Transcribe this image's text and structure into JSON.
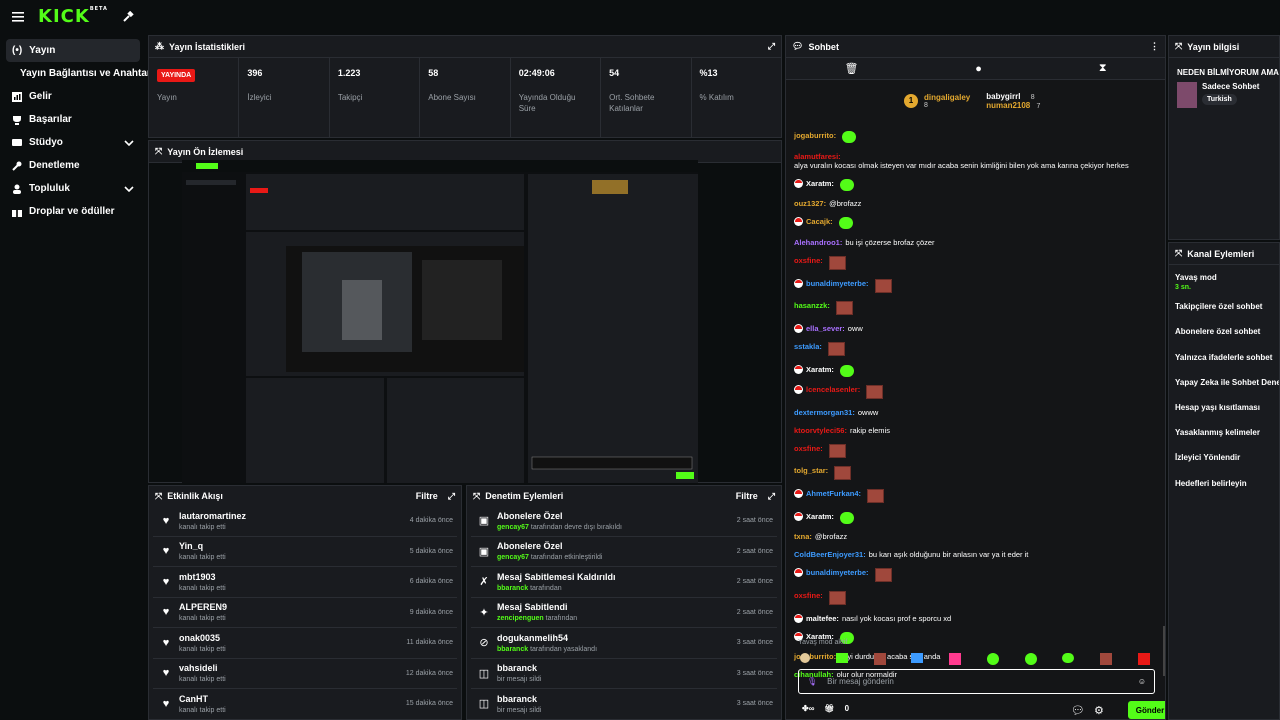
{
  "brand": {
    "logo": "KICK",
    "beta": "BETA",
    "accent": "#53fc18"
  },
  "sidebar": {
    "items": [
      {
        "label": "Yayın",
        "icon": "radio-icon",
        "active": true
      },
      {
        "label": "Yayın Bağlantısı ve Anahtarı",
        "sub": true
      },
      {
        "label": "Gelir",
        "icon": "chart-icon"
      },
      {
        "label": "Başarılar",
        "icon": "trophy-icon"
      },
      {
        "label": "Stüdyo",
        "icon": "tv-icon",
        "chev": true
      },
      {
        "label": "Denetleme",
        "icon": "wrench-icon"
      },
      {
        "label": "Topluluk",
        "icon": "community-icon",
        "chev": true
      },
      {
        "label": "Droplar ve ödüller",
        "icon": "gift-icon"
      }
    ]
  },
  "stats": {
    "title": "Yayın İstatistikleri",
    "live_label": "YAYINDA",
    "live_sub": "Yayın",
    "items": [
      {
        "value": "396",
        "label": "İzleyici"
      },
      {
        "value": "1.223",
        "label": "Takipçi"
      },
      {
        "value": "58",
        "label": "Abone Sayısı"
      },
      {
        "value": "02:49:06",
        "label": "Yayında Olduğu Süre"
      },
      {
        "value": "54",
        "label": "Ort. Sohbete Katılanlar"
      },
      {
        "value": "%13",
        "label": "% Katılım"
      }
    ]
  },
  "preview": {
    "title": "Yayın Ön İzlemesi"
  },
  "activity": {
    "title": "Etkinlik Akışı",
    "filter": "Filtre",
    "rows": [
      {
        "name": "lautaromartinez",
        "sub": "kanalı takip etti",
        "time": "4 dakika önce"
      },
      {
        "name": "Yin_q",
        "sub": "kanalı takip etti",
        "time": "5 dakika önce"
      },
      {
        "name": "mbt1903",
        "sub": "kanalı takip etti",
        "time": "6 dakika önce"
      },
      {
        "name": "ALPEREN9",
        "sub": "kanalı takip etti",
        "time": "9 dakika önce"
      },
      {
        "name": "onak0035",
        "sub": "kanalı takip etti",
        "time": "11 dakika önce"
      },
      {
        "name": "vahsideli",
        "sub": "kanalı takip etti",
        "time": "12 dakika önce"
      },
      {
        "name": "CanHT",
        "sub": "kanalı takip etti",
        "time": "15 dakika önce"
      }
    ]
  },
  "moderation": {
    "title": "Denetim Eylemleri",
    "filter": "Filtre",
    "rows": [
      {
        "icon": "gift-icon",
        "name": "Abonelere Özel",
        "user": "gencay67",
        "sub": "tarafından devre dışı bırakıldı",
        "time": "2 saat önce"
      },
      {
        "icon": "gift-icon",
        "name": "Abonelere Özel",
        "user": "gencay67",
        "sub": "tarafından etkinleştirildi",
        "time": "2 saat önce"
      },
      {
        "icon": "unpin-icon",
        "name": "Mesaj Sabitlemesi Kaldırıldı",
        "user": "bbaranck",
        "sub": "tarafından",
        "time": "2 saat önce"
      },
      {
        "icon": "pin-icon",
        "name": "Mesaj Sabitlendi",
        "user": "zencipenguen",
        "sub": "tarafından",
        "time": "2 saat önce"
      },
      {
        "icon": "ban-icon",
        "name": "dogukanmelih54",
        "user": "bbaranck",
        "sub": "tarafından yasaklandı",
        "time": "3 saat önce"
      },
      {
        "icon": "trash-icon",
        "name": "bbaranck",
        "user": "",
        "sub": "bir mesajı sildi",
        "time": "3 saat önce"
      },
      {
        "icon": "trash-icon",
        "name": "bbaranck",
        "user": "",
        "sub": "bir mesajı sildi",
        "time": "3 saat önce"
      }
    ]
  },
  "chat": {
    "title": "Sohbet",
    "top": {
      "first": "dingaligaley",
      "first_count": "8",
      "second": "babygirrl",
      "second_count": "8",
      "third": "numan2108",
      "third_count": "7"
    },
    "lines": [
      {
        "user": "jogaburrito:",
        "color": "#e3a82f",
        "text": "",
        "emote": "green"
      },
      {
        "user": "alamutfaresi:",
        "color": "#e91916",
        "text": "alya vuralın kocası olmak isteyen var mıdır acaba senin kimliğini bilen yok ama karına çekiyor herkes"
      },
      {
        "user": "Xaratm:",
        "color": "#fff",
        "text": "",
        "badge": true,
        "emote": "green"
      },
      {
        "user": "ouz1327:",
        "color": "#e3a82f",
        "text": "@brofazz"
      },
      {
        "user": "Cacajk:",
        "color": "#e3a82f",
        "text": "",
        "badge": true,
        "emote": "green"
      },
      {
        "user": "Alehandroo1:",
        "color": "#a970ff",
        "text": "bu işi çözerse brofaz çözer"
      },
      {
        "user": "oxsfine:",
        "color": "#e91916",
        "text": "",
        "emote": "brown"
      },
      {
        "user": "bunaldimyeterbe:",
        "color": "#3d9bff",
        "text": "",
        "badge": true,
        "emote": "brown"
      },
      {
        "user": "hasanzzk:",
        "color": "#53fc18",
        "text": "",
        "emote": "brown"
      },
      {
        "user": "ella_sever:",
        "color": "#a970ff",
        "text": "oww",
        "badge": true
      },
      {
        "user": "sstakla:",
        "color": "#3d9bff",
        "text": "",
        "emote": "brown"
      },
      {
        "user": "Xaratm:",
        "color": "#fff",
        "text": "",
        "badge": true,
        "emote": "green"
      },
      {
        "user": "lcencelasenler:",
        "color": "#e91916",
        "text": "",
        "badge": true,
        "emote": "brown"
      },
      {
        "user": "dextermorgan31:",
        "color": "#3d9bff",
        "text": "owww"
      },
      {
        "user": "ktoorvtyleci56:",
        "color": "#e91916",
        "text": "rakip elemis"
      },
      {
        "user": "oxsfine:",
        "color": "#e91916",
        "text": "",
        "emote": "brown"
      },
      {
        "user": "tolg_star:",
        "color": "#e3a82f",
        "text": "",
        "emote": "brown"
      },
      {
        "user": "AhmetFurkan4:",
        "color": "#3d9bff",
        "text": "",
        "badge": true,
        "emote": "brown"
      },
      {
        "user": "Xaratm:",
        "color": "#fff",
        "text": "",
        "badge": true,
        "emote": "green"
      },
      {
        "user": "txna:",
        "color": "#e3a82f",
        "text": "@brofazz"
      },
      {
        "user": "ColdBeerEnjoyer31:",
        "color": "#3d9bff",
        "text": "bu karı aşık olduğunu bir anlasın var ya it eder it"
      },
      {
        "user": "bunaldimyeterbe:",
        "color": "#3d9bff",
        "text": "",
        "badge": true,
        "emote": "brown"
      },
      {
        "user": "oxsfine:",
        "color": "#e91916",
        "text": "",
        "emote": "brown"
      },
      {
        "user": "maltefee:",
        "color": "#fff",
        "text": "nasıl yok kocası prof e sporcu xd",
        "badge": true
      },
      {
        "user": "Xaratm:",
        "color": "#fff",
        "text": "",
        "badge": true,
        "emote": "green"
      },
      {
        "user": "jogaburrito:",
        "color": "#e3a82f",
        "text": "neyi durdurdu acaba son anda"
      },
      {
        "user": "cihanullah:",
        "color": "#53fc18",
        "text": "olur olur normaldir"
      }
    ],
    "slow": "Yavaş mod aktif",
    "input_placeholder": "Bir mesaj gönderin",
    "send": "Gönder",
    "points": "0"
  },
  "info": {
    "title": "Yayın bilgisi",
    "stream_title": "NEDEN BİLMİYORUM AMA",
    "category": "Sadece Sohbet",
    "tag": "Turkish"
  },
  "actions": {
    "title": "Kanal Eylemleri",
    "items": [
      {
        "label": "Yavaş mod",
        "sub": "3 sn."
      },
      {
        "label": "Takipçilere özel sohbet"
      },
      {
        "label": "Abonelere özel sohbet"
      },
      {
        "label": "Yalnızca ifadelerle sohbet"
      },
      {
        "label": "Yapay Zeka ile Sohbet Denetimi"
      },
      {
        "label": "Hesap yaşı kısıtlaması"
      },
      {
        "label": "Yasaklanmış kelimeler"
      },
      {
        "label": "İzleyici Yönlendir"
      },
      {
        "label": "Hedefleri belirleyin"
      }
    ]
  }
}
